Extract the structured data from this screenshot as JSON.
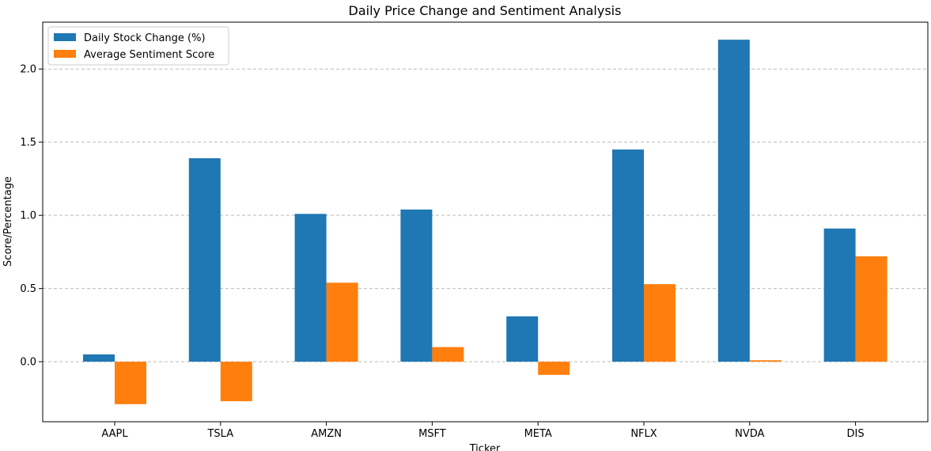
{
  "chart_data": {
    "type": "bar",
    "title": "Daily Price Change and Sentiment Analysis",
    "xlabel": "Ticker",
    "ylabel": "Score/Percentage",
    "categories": [
      "AAPL",
      "TSLA",
      "AMZN",
      "MSFT",
      "META",
      "NFLX",
      "NVDA",
      "DIS"
    ],
    "series": [
      {
        "name": "Daily Stock Change (%)",
        "color": "#1f77b4",
        "values": [
          0.05,
          1.39,
          1.01,
          1.04,
          0.31,
          1.45,
          2.2,
          0.91
        ]
      },
      {
        "name": "Average Sentiment Score",
        "color": "#ff7f0e",
        "values": [
          -0.29,
          -0.27,
          0.54,
          0.1,
          -0.09,
          0.53,
          0.01,
          0.72
        ]
      }
    ],
    "ylim": [
      -0.41,
      2.32
    ],
    "yticks": [
      0.0,
      0.5,
      1.0,
      1.5,
      2.0
    ],
    "ytick_labels": [
      "0.0",
      "0.5",
      "1.0",
      "1.5",
      "2.0"
    ],
    "grid": "y-dashed",
    "legend_position": "top-left"
  }
}
